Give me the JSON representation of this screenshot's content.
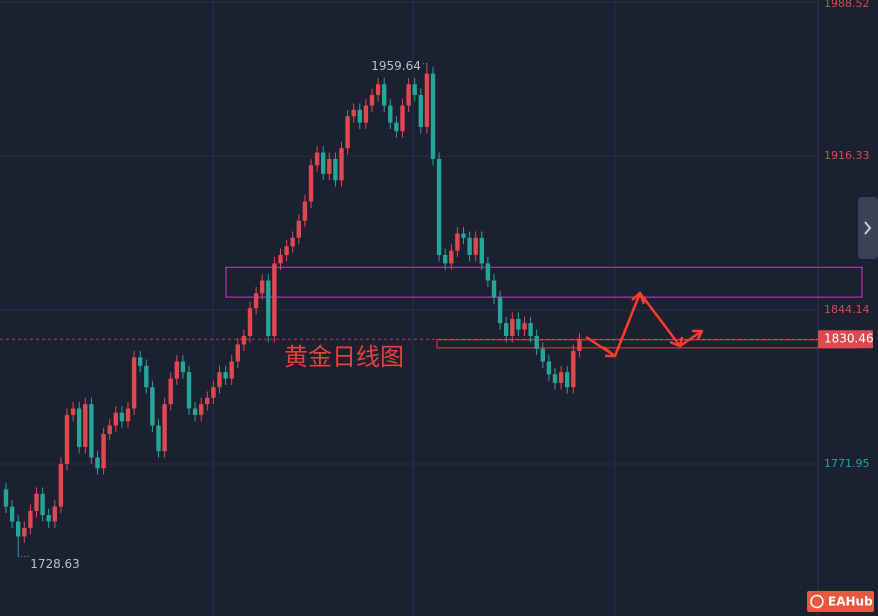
{
  "chart_data": {
    "type": "candlestick",
    "annotation": "黄金日线图",
    "watermark": "EAHub",
    "up_color": "#e0484f",
    "down_color": "#26a69a",
    "ylim": [
      1700.7,
      1989.5
    ],
    "yticks": [
      1771.95,
      1844.14,
      1916.33,
      1988.52
    ],
    "grid": true,
    "last_price": 1830.46,
    "zones": [
      {
        "range": [
          1850.2,
          1864.2
        ],
        "color": "#c83cc8"
      },
      {
        "range": [
          1826.4,
          1830.2
        ],
        "color": "#e0433b"
      }
    ],
    "open": [
      1760,
      1752,
      1745,
      1738,
      1742,
      1750,
      1758,
      1748,
      1745,
      1752,
      1772,
      1795,
      1798,
      1780,
      1800,
      1775,
      1770,
      1786,
      1790,
      1796,
      1792,
      1798,
      1822,
      1818,
      1808,
      1790,
      1778,
      1800,
      1812,
      1820,
      1815,
      1798,
      1795,
      1800,
      1803,
      1808,
      1815,
      1812,
      1820,
      1828,
      1832,
      1845,
      1852,
      1858,
      1832,
      1866,
      1870,
      1874,
      1878,
      1886,
      1895,
      1912,
      1918,
      1908,
      1915,
      1905,
      1920,
      1935,
      1938,
      1932,
      1940,
      1945,
      1950,
      1940,
      1932,
      1928,
      1940,
      1950,
      1945,
      1930,
      1955,
      1915,
      1870,
      1866,
      1872,
      1880,
      1878,
      1870,
      1878,
      1866,
      1858,
      1850,
      1838,
      1832,
      1840,
      1835,
      1838,
      1832,
      1826,
      1820,
      1814,
      1810,
      1815,
      1808,
      1825
    ],
    "high": [
      1763,
      1755,
      1748,
      1745,
      1753,
      1761,
      1761,
      1751,
      1755,
      1775,
      1798,
      1801,
      1801,
      1803,
      1803,
      1778,
      1789,
      1793,
      1799,
      1799,
      1801,
      1825,
      1825,
      1821,
      1811,
      1793,
      1803,
      1815,
      1823,
      1823,
      1818,
      1801,
      1803,
      1806,
      1811,
      1818,
      1818,
      1823,
      1831,
      1835,
      1848,
      1855,
      1861,
      1861,
      1869,
      1873,
      1877,
      1881,
      1889,
      1898,
      1915,
      1921,
      1921,
      1918,
      1918,
      1923,
      1938,
      1941,
      1941,
      1943,
      1948,
      1953,
      1953,
      1943,
      1935,
      1943,
      1953,
      1953,
      1948,
      1959.64,
      1958,
      1918,
      1873,
      1875,
      1883,
      1883,
      1881,
      1881,
      1881,
      1869,
      1861,
      1853,
      1841,
      1843,
      1843,
      1841,
      1841,
      1835,
      1829,
      1823,
      1817,
      1818,
      1818,
      1828,
      1833.46
    ],
    "low": [
      1749,
      1742,
      1728.63,
      1735,
      1739,
      1747,
      1745,
      1742,
      1742,
      1749,
      1769,
      1792,
      1777,
      1777,
      1772,
      1767,
      1767,
      1783,
      1787,
      1789,
      1789,
      1795,
      1815,
      1805,
      1787,
      1775,
      1775,
      1797,
      1809,
      1812,
      1795,
      1792,
      1792,
      1797,
      1800,
      1805,
      1809,
      1809,
      1817,
      1825,
      1829,
      1842,
      1849,
      1829,
      1829,
      1863,
      1867,
      1871,
      1875,
      1883,
      1892,
      1909,
      1905,
      1905,
      1902,
      1902,
      1917,
      1932,
      1929,
      1929,
      1937,
      1942,
      1937,
      1929,
      1925,
      1925,
      1937,
      1942,
      1927,
      1927,
      1912,
      1867,
      1863,
      1863,
      1869,
      1875,
      1867,
      1867,
      1863,
      1855,
      1847,
      1835,
      1829,
      1829,
      1832,
      1832,
      1829,
      1823,
      1817,
      1811,
      1807,
      1807,
      1805,
      1805,
      1822
    ],
    "close": [
      1752,
      1745,
      1738,
      1742,
      1750,
      1758,
      1748,
      1745,
      1752,
      1772,
      1795,
      1798,
      1780,
      1800,
      1775,
      1770,
      1786,
      1790,
      1796,
      1792,
      1798,
      1822,
      1818,
      1808,
      1790,
      1778,
      1800,
      1812,
      1820,
      1815,
      1798,
      1795,
      1800,
      1803,
      1808,
      1815,
      1812,
      1820,
      1828,
      1832,
      1845,
      1852,
      1858,
      1832,
      1866,
      1870,
      1874,
      1878,
      1886,
      1895,
      1912,
      1918,
      1908,
      1915,
      1905,
      1920,
      1935,
      1938,
      1932,
      1940,
      1945,
      1950,
      1940,
      1932,
      1928,
      1940,
      1950,
      1945,
      1930,
      1955,
      1915,
      1870,
      1866,
      1872,
      1880,
      1878,
      1870,
      1878,
      1866,
      1858,
      1850,
      1838,
      1832,
      1840,
      1835,
      1838,
      1832,
      1826,
      1820,
      1814,
      1810,
      1815,
      1808,
      1825,
      1830.46
    ]
  }
}
